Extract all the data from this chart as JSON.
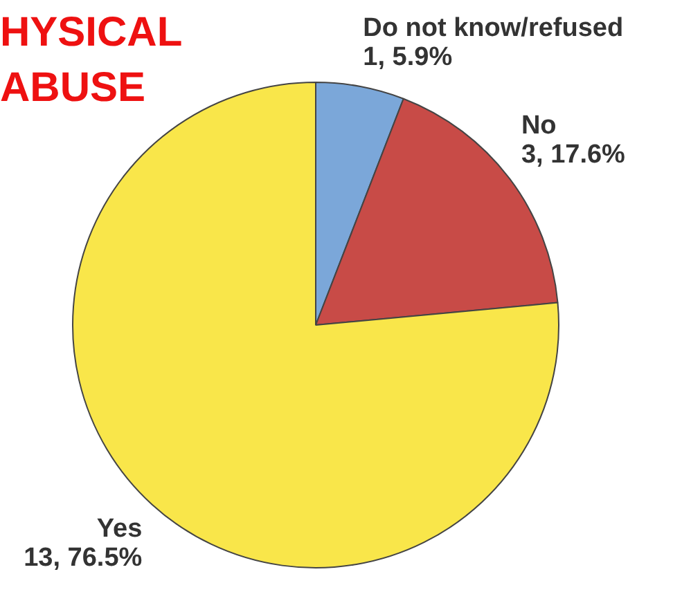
{
  "chart_data": {
    "type": "pie",
    "title": "HYSICAL ABUSE",
    "categories": [
      "Do not know/refused",
      "No",
      "Yes"
    ],
    "values": [
      1,
      3,
      13
    ],
    "value_labels": [
      "1, 5.9%",
      "3, 17.6%",
      "13, 76.5%"
    ],
    "colors": [
      "#7ba7d9",
      "#c84b47",
      "#f9e64a"
    ],
    "legend": false
  }
}
